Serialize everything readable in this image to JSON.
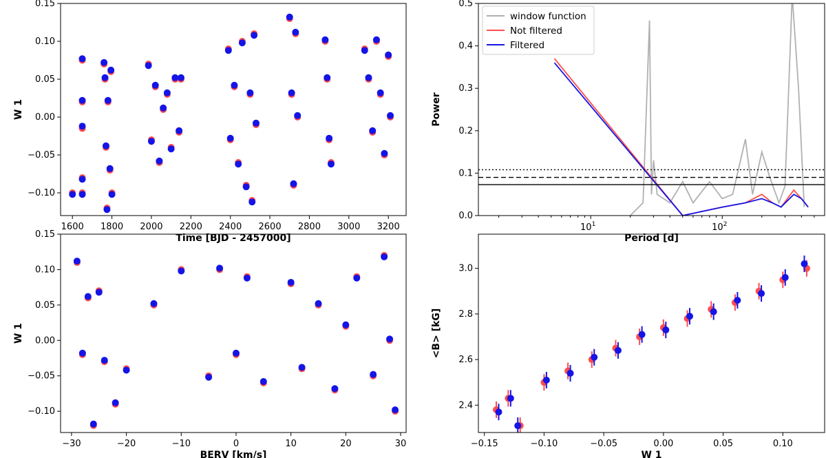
{
  "colors": {
    "red": "#ff4c4c",
    "blue": "#1414e6",
    "gray": "#b0b0b0",
    "black": "#000000"
  },
  "chart_data": [
    {
      "id": "time",
      "type": "scatter",
      "xlabel": "Time [BJD - 2457000]",
      "ylabel": "W 1",
      "xlim": [
        1540,
        3290
      ],
      "ylim": [
        -0.13,
        0.15
      ],
      "xticks": [
        1600,
        1800,
        2000,
        2200,
        2400,
        2600,
        2800,
        3000,
        3200
      ],
      "yticks": [
        -0.1,
        -0.05,
        0.0,
        0.05,
        0.1,
        0.15
      ],
      "yticklabels": [
        "−0.10",
        "−0.05",
        "0.00",
        "0.05",
        "0.10",
        "0.15"
      ],
      "series": [
        {
          "name": "Not filtered",
          "points": [
            [
              1600,
              -0.1
            ],
            [
              1650,
              0.075
            ],
            [
              1650,
              0.02
            ],
            [
              1650,
              -0.015
            ],
            [
              1650,
              -0.08
            ],
            [
              1650,
              -0.1
            ],
            [
              1760,
              0.07
            ],
            [
              1765,
              0.05
            ],
            [
              1770,
              -0.04
            ],
            [
              1775,
              -0.12
            ],
            [
              1780,
              0.02
            ],
            [
              1790,
              -0.07
            ],
            [
              1795,
              0.06
            ],
            [
              1800,
              -0.1
            ],
            [
              1985,
              0.07
            ],
            [
              2000,
              -0.03
            ],
            [
              2020,
              0.04
            ],
            [
              2040,
              -0.06
            ],
            [
              2060,
              0.01
            ],
            [
              2080,
              0.03
            ],
            [
              2100,
              -0.04
            ],
            [
              2120,
              0.05
            ],
            [
              2140,
              -0.02
            ],
            [
              2150,
              0.05
            ],
            [
              2390,
              0.09
            ],
            [
              2400,
              -0.03
            ],
            [
              2420,
              0.04
            ],
            [
              2440,
              -0.06
            ],
            [
              2460,
              0.1
            ],
            [
              2480,
              -0.09
            ],
            [
              2500,
              0.03
            ],
            [
              2510,
              -0.11
            ],
            [
              2520,
              0.11
            ],
            [
              2530,
              -0.01
            ],
            [
              2700,
              0.13
            ],
            [
              2710,
              0.03
            ],
            [
              2720,
              -0.09
            ],
            [
              2730,
              0.11
            ],
            [
              2740,
              0.0
            ],
            [
              2880,
              0.1
            ],
            [
              2890,
              0.05
            ],
            [
              2900,
              -0.03
            ],
            [
              2910,
              -0.06
            ],
            [
              3080,
              0.09
            ],
            [
              3100,
              0.05
            ],
            [
              3120,
              -0.02
            ],
            [
              3140,
              0.1
            ],
            [
              3160,
              0.03
            ],
            [
              3180,
              -0.05
            ],
            [
              3200,
              0.08
            ],
            [
              3210,
              0.0
            ]
          ]
        },
        {
          "name": "Filtered",
          "points": [
            [
              1600,
              -0.102
            ],
            [
              1650,
              0.077
            ],
            [
              1650,
              0.022
            ],
            [
              1650,
              -0.012
            ],
            [
              1650,
              -0.082
            ],
            [
              1650,
              -0.102
            ],
            [
              1760,
              0.072
            ],
            [
              1765,
              0.052
            ],
            [
              1770,
              -0.038
            ],
            [
              1775,
              -0.122
            ],
            [
              1780,
              0.022
            ],
            [
              1790,
              -0.068
            ],
            [
              1795,
              0.062
            ],
            [
              1800,
              -0.102
            ],
            [
              1985,
              0.068
            ],
            [
              2000,
              -0.032
            ],
            [
              2020,
              0.042
            ],
            [
              2040,
              -0.058
            ],
            [
              2060,
              0.012
            ],
            [
              2080,
              0.032
            ],
            [
              2100,
              -0.042
            ],
            [
              2120,
              0.052
            ],
            [
              2140,
              -0.018
            ],
            [
              2150,
              0.052
            ],
            [
              2390,
              0.088
            ],
            [
              2400,
              -0.028
            ],
            [
              2420,
              0.042
            ],
            [
              2440,
              -0.062
            ],
            [
              2460,
              0.098
            ],
            [
              2480,
              -0.092
            ],
            [
              2500,
              0.032
            ],
            [
              2510,
              -0.112
            ],
            [
              2520,
              0.108
            ],
            [
              2530,
              -0.008
            ],
            [
              2700,
              0.132
            ],
            [
              2710,
              0.032
            ],
            [
              2720,
              -0.088
            ],
            [
              2730,
              0.112
            ],
            [
              2740,
              0.002
            ],
            [
              2880,
              0.102
            ],
            [
              2890,
              0.052
            ],
            [
              2900,
              -0.028
            ],
            [
              2910,
              -0.062
            ],
            [
              3080,
              0.088
            ],
            [
              3100,
              0.052
            ],
            [
              3120,
              -0.018
            ],
            [
              3140,
              0.102
            ],
            [
              3160,
              0.032
            ],
            [
              3180,
              -0.048
            ],
            [
              3200,
              0.082
            ],
            [
              3210,
              0.002
            ]
          ]
        }
      ]
    },
    {
      "id": "periodogram",
      "type": "line",
      "xlabel": "Period [d]",
      "ylabel": "Power",
      "xscale": "log",
      "xlim": [
        1.4,
        600
      ],
      "ylim": [
        0.0,
        0.5
      ],
      "xticks": [
        10,
        100
      ],
      "xticklabels": [
        "10^1",
        "10^2"
      ],
      "yticks": [
        0.0,
        0.1,
        0.2,
        0.3,
        0.4,
        0.5
      ],
      "yticklabels": [
        "0.0",
        "0.1",
        "0.2",
        "0.3",
        "0.4",
        "0.5"
      ],
      "fap_levels": [
        0.108,
        0.09,
        0.073
      ],
      "legend": [
        "window function",
        "Not filtered",
        "Filtered"
      ],
      "series": [
        {
          "name": "window function",
          "points": [
            [
              20,
              0.0
            ],
            [
              25,
              0.03
            ],
            [
              28,
              0.46
            ],
            [
              29,
              0.05
            ],
            [
              30,
              0.13
            ],
            [
              32,
              0.05
            ],
            [
              40,
              0.03
            ],
            [
              50,
              0.08
            ],
            [
              60,
              0.03
            ],
            [
              80,
              0.08
            ],
            [
              100,
              0.04
            ],
            [
              120,
              0.05
            ],
            [
              150,
              0.18
            ],
            [
              170,
              0.05
            ],
            [
              200,
              0.15
            ],
            [
              230,
              0.09
            ],
            [
              270,
              0.03
            ],
            [
              300,
              0.07
            ],
            [
              340,
              0.52
            ],
            [
              380,
              0.3
            ],
            [
              420,
              0.02
            ]
          ]
        },
        {
          "name": "Not filtered",
          "points": [
            [
              5.3,
              0.37
            ],
            [
              50,
              0.0
            ],
            [
              100,
              0.02
            ],
            [
              150,
              0.03
            ],
            [
              200,
              0.05
            ],
            [
              240,
              0.03
            ],
            [
              280,
              0.02
            ],
            [
              350,
              0.06
            ],
            [
              400,
              0.04
            ],
            [
              450,
              0.02
            ]
          ]
        },
        {
          "name": "Filtered",
          "points": [
            [
              5.3,
              0.36
            ],
            [
              50,
              0.0
            ],
            [
              100,
              0.02
            ],
            [
              150,
              0.03
            ],
            [
              200,
              0.04
            ],
            [
              240,
              0.03
            ],
            [
              280,
              0.02
            ],
            [
              350,
              0.05
            ],
            [
              400,
              0.04
            ],
            [
              450,
              0.02
            ]
          ]
        }
      ]
    },
    {
      "id": "berv",
      "type": "scatter",
      "xlabel": "BERV [km/s]",
      "ylabel": "W 1",
      "xlim": [
        -32,
        31
      ],
      "ylim": [
        -0.13,
        0.15
      ],
      "xticks": [
        -30,
        -20,
        -10,
        0,
        10,
        20,
        30
      ],
      "xticklabels": [
        "−30",
        "−20",
        "−10",
        "0",
        "10",
        "20",
        "30"
      ],
      "yticks": [
        -0.1,
        -0.05,
        0.0,
        0.05,
        0.1,
        0.15
      ],
      "yticklabels": [
        "−0.10",
        "−0.05",
        "0.00",
        "0.05",
        "0.10",
        "0.15"
      ],
      "series": [
        {
          "name": "Not filtered",
          "points": [
            [
              -29,
              0.11
            ],
            [
              -28,
              -0.02
            ],
            [
              -27,
              0.06
            ],
            [
              -26,
              -0.12
            ],
            [
              -25,
              0.07
            ],
            [
              -24,
              -0.03
            ],
            [
              -22,
              -0.09
            ],
            [
              -20,
              -0.04
            ],
            [
              -15,
              0.05
            ],
            [
              -10,
              0.1
            ],
            [
              -5,
              -0.05
            ],
            [
              -3,
              0.1
            ],
            [
              0,
              -0.02
            ],
            [
              2,
              0.09
            ],
            [
              5,
              -0.06
            ],
            [
              10,
              0.08
            ],
            [
              12,
              -0.04
            ],
            [
              15,
              0.05
            ],
            [
              18,
              -0.07
            ],
            [
              20,
              0.02
            ],
            [
              22,
              0.09
            ],
            [
              25,
              -0.05
            ],
            [
              27,
              0.12
            ],
            [
              28,
              0.0
            ],
            [
              29,
              -0.1
            ]
          ]
        },
        {
          "name": "Filtered",
          "points": [
            [
              -29,
              0.112
            ],
            [
              -28,
              -0.018
            ],
            [
              -27,
              0.062
            ],
            [
              -26,
              -0.118
            ],
            [
              -25,
              0.068
            ],
            [
              -24,
              -0.028
            ],
            [
              -22,
              -0.088
            ],
            [
              -20,
              -0.042
            ],
            [
              -15,
              0.052
            ],
            [
              -10,
              0.098
            ],
            [
              -5,
              -0.052
            ],
            [
              -3,
              0.102
            ],
            [
              0,
              -0.018
            ],
            [
              2,
              0.088
            ],
            [
              5,
              -0.058
            ],
            [
              10,
              0.082
            ],
            [
              12,
              -0.038
            ],
            [
              15,
              0.052
            ],
            [
              18,
              -0.068
            ],
            [
              20,
              0.022
            ],
            [
              22,
              0.088
            ],
            [
              25,
              -0.048
            ],
            [
              27,
              0.118
            ],
            [
              28,
              0.002
            ],
            [
              29,
              -0.098
            ]
          ]
        }
      ]
    },
    {
      "id": "bfield",
      "type": "scatter",
      "xlabel": "W 1",
      "ylabel": "<B> [kG]",
      "xlim": [
        -0.155,
        0.135
      ],
      "ylim": [
        2.28,
        3.15
      ],
      "xticks": [
        -0.15,
        -0.1,
        -0.05,
        0.0,
        0.05,
        0.1
      ],
      "xticklabels": [
        "−0.15",
        "−0.10",
        "−0.05",
        "0.00",
        "0.05",
        "0.10"
      ],
      "yticks": [
        2.4,
        2.6,
        2.8,
        3.0
      ],
      "yticklabels": [
        "2.4",
        "2.6",
        "2.8",
        "3.0"
      ],
      "series": [
        {
          "name": "Not filtered",
          "points": [
            [
              -0.14,
              2.38
            ],
            [
              -0.13,
              2.43
            ],
            [
              -0.12,
              2.31
            ],
            [
              -0.1,
              2.5
            ],
            [
              -0.08,
              2.55
            ],
            [
              -0.06,
              2.6
            ],
            [
              -0.04,
              2.65
            ],
            [
              -0.02,
              2.7
            ],
            [
              0.0,
              2.74
            ],
            [
              0.02,
              2.78
            ],
            [
              0.04,
              2.82
            ],
            [
              0.06,
              2.85
            ],
            [
              0.08,
              2.9
            ],
            [
              0.1,
              2.95
            ],
            [
              0.12,
              3.0
            ]
          ]
        },
        {
          "name": "Filtered",
          "points": [
            [
              -0.138,
              2.37
            ],
            [
              -0.128,
              2.43
            ],
            [
              -0.122,
              2.31
            ],
            [
              -0.098,
              2.51
            ],
            [
              -0.078,
              2.54
            ],
            [
              -0.058,
              2.61
            ],
            [
              -0.038,
              2.64
            ],
            [
              -0.018,
              2.71
            ],
            [
              0.002,
              2.73
            ],
            [
              0.022,
              2.79
            ],
            [
              0.042,
              2.81
            ],
            [
              0.062,
              2.86
            ],
            [
              0.082,
              2.89
            ],
            [
              0.102,
              2.96
            ],
            [
              0.118,
              3.02
            ]
          ]
        }
      ]
    }
  ]
}
